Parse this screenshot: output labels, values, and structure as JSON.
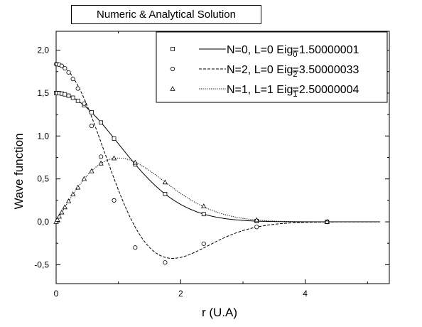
{
  "chart_data": {
    "type": "line",
    "title": "Numeric & Analytical Solution",
    "xlabel": "r (U.A)",
    "ylabel": "Wave function",
    "xlim": [
      0,
      5.35
    ],
    "ylim": [
      -0.72,
      2.22
    ],
    "x_ticks": [
      "0",
      "2",
      "4"
    ],
    "y_ticks": [
      "-0,5",
      "0,0",
      "0,5",
      "1,0",
      "1,5",
      "2,0"
    ],
    "grid": false,
    "legend_position": "top-right",
    "series": [
      {
        "legend_label": "N=0, L=0",
        "eig_prefix": "Eig",
        "eig_sub": "0",
        "eig_value": "=1.50000001",
        "marker": "square",
        "line_style": "solid",
        "analytic_curve": "1.5*exp(-r^2/2)",
        "points": [
          {
            "x": 0.0,
            "y": 1.5
          },
          {
            "x": 0.02,
            "y": 1.5
          },
          {
            "x": 0.05,
            "y": 1.498
          },
          {
            "x": 0.09,
            "y": 1.494
          },
          {
            "x": 0.14,
            "y": 1.485
          },
          {
            "x": 0.2,
            "y": 1.47
          },
          {
            "x": 0.27,
            "y": 1.446
          },
          {
            "x": 0.35,
            "y": 1.41
          },
          {
            "x": 0.45,
            "y": 1.358
          },
          {
            "x": 0.57,
            "y": 1.277
          },
          {
            "x": 0.72,
            "y": 1.157
          },
          {
            "x": 0.93,
            "y": 0.97
          },
          {
            "x": 1.27,
            "y": 0.669
          },
          {
            "x": 1.75,
            "y": 0.324
          },
          {
            "x": 2.37,
            "y": 0.09
          },
          {
            "x": 3.22,
            "y": 0.009
          },
          {
            "x": 4.35,
            "y": 0.0
          }
        ]
      },
      {
        "legend_label": "N=2, L=0",
        "eig_prefix": "Eig",
        "eig_sub": "2",
        "eig_value": "=3.50000033",
        "marker": "circle",
        "line_style": "dashed",
        "analytic_curve": "1.837*(1-2r^2/3)*exp(-r^2/2)",
        "points": [
          {
            "x": 0.0,
            "y": 1.837
          },
          {
            "x": 0.02,
            "y": 1.836
          },
          {
            "x": 0.05,
            "y": 1.831
          },
          {
            "x": 0.09,
            "y": 1.817
          },
          {
            "x": 0.14,
            "y": 1.789
          },
          {
            "x": 0.2,
            "y": 1.741
          },
          {
            "x": 0.27,
            "y": 1.664
          },
          {
            "x": 0.35,
            "y": 1.553
          },
          {
            "x": 0.45,
            "y": 1.378
          },
          {
            "x": 0.57,
            "y": 1.118
          },
          {
            "x": 0.72,
            "y": 0.759
          },
          {
            "x": 0.93,
            "y": 0.25
          },
          {
            "x": 1.27,
            "y": -0.3
          },
          {
            "x": 1.75,
            "y": -0.473
          },
          {
            "x": 2.37,
            "y": -0.255
          },
          {
            "x": 3.22,
            "y": -0.06
          },
          {
            "x": 4.35,
            "y": -0.001
          }
        ]
      },
      {
        "legend_label": "N=1, L=1",
        "eig_prefix": "Eig",
        "eig_sub": "1",
        "eig_value": "=2.50000004",
        "marker": "triangle",
        "line_style": "dotted",
        "analytic_curve": "1.225*r*exp(-r^2/2)",
        "points": [
          {
            "x": 0.0,
            "y": 0.0
          },
          {
            "x": 0.02,
            "y": 0.025
          },
          {
            "x": 0.05,
            "y": 0.061
          },
          {
            "x": 0.09,
            "y": 0.11
          },
          {
            "x": 0.14,
            "y": 0.17
          },
          {
            "x": 0.2,
            "y": 0.24
          },
          {
            "x": 0.27,
            "y": 0.32
          },
          {
            "x": 0.35,
            "y": 0.4
          },
          {
            "x": 0.45,
            "y": 0.5
          },
          {
            "x": 0.57,
            "y": 0.59
          },
          {
            "x": 0.72,
            "y": 0.68
          },
          {
            "x": 0.93,
            "y": 0.74
          },
          {
            "x": 1.27,
            "y": 0.69
          },
          {
            "x": 1.75,
            "y": 0.46
          },
          {
            "x": 2.37,
            "y": 0.18
          },
          {
            "x": 3.22,
            "y": 0.02
          },
          {
            "x": 4.35,
            "y": 0.0
          }
        ]
      }
    ]
  }
}
